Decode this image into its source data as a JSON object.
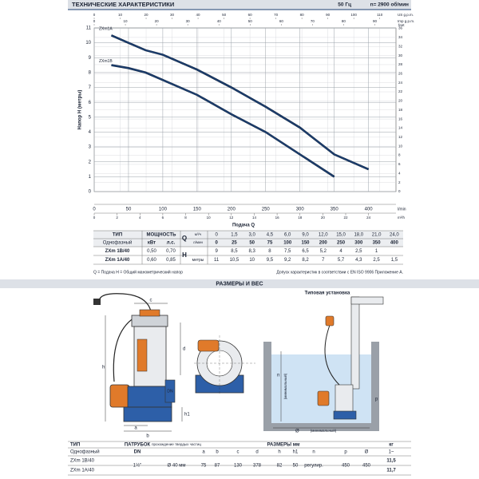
{
  "header": {
    "title": "ТЕХНИЧЕСКИЕ ХАРАКТЕРИСТИКИ",
    "freq": "50 Гц",
    "speed": "n= 2900 об/мин"
  },
  "chart_data": {
    "type": "line",
    "ylabel": "Напор H (метры)",
    "xlabel": "Подача Q",
    "x_unit": "l/min",
    "xlim": [
      0,
      440
    ],
    "xticks": [
      0,
      50,
      100,
      150,
      200,
      250,
      300,
      350,
      400
    ],
    "ylim": [
      0,
      11
    ],
    "yticks": [
      0,
      1,
      2,
      3,
      4,
      5,
      6,
      7,
      8,
      9,
      10,
      11
    ],
    "y2_unit": "feet",
    "y2lim": [
      0,
      36.09
    ],
    "y2ticks": [
      0,
      2,
      4,
      6,
      8,
      10,
      12,
      14,
      16,
      18,
      20,
      22,
      24,
      26,
      28,
      30,
      32,
      34,
      36
    ],
    "x2": {
      "unit": "m³/h",
      "lim": [
        0,
        26.4
      ],
      "ticks": [
        0,
        2,
        4,
        6,
        8,
        10,
        12,
        14,
        16,
        18,
        20,
        22,
        24
      ]
    },
    "x3": {
      "unit": "US g.p.m.",
      "lim": [
        0,
        116.25
      ],
      "ticks": [
        0,
        10,
        20,
        30,
        40,
        50,
        60,
        70,
        80,
        90,
        100,
        110
      ]
    },
    "x4": {
      "unit": "Imp g.p.m.",
      "lim": [
        0,
        96.79
      ],
      "ticks": [
        0,
        10,
        20,
        30,
        40,
        50,
        60,
        70,
        80,
        90
      ]
    },
    "grid": true,
    "x": [
      25,
      50,
      75,
      100,
      150,
      200,
      250,
      300,
      350,
      400
    ],
    "series": [
      {
        "name": "ZXm1A",
        "color": "#1d3f70",
        "values": [
          10.5,
          10,
          9.5,
          9.2,
          8.2,
          7,
          5.7,
          4.3,
          2.5,
          1.5
        ]
      },
      {
        "name": "ZXm1B",
        "color": "#1d3f70",
        "values": [
          8.5,
          8.3,
          8,
          7.5,
          6.5,
          5.2,
          4,
          2.5,
          1,
          null
        ]
      }
    ]
  },
  "performance_table": {
    "type_header": "ТИП",
    "power_header": "МОЩНОСТЬ",
    "q_symbol": "Q",
    "h_symbol": "H",
    "q_units": [
      "м³/ч",
      "л/мин"
    ],
    "h_unit": "метры",
    "phase": "Однофазный",
    "power_units": [
      "кВт",
      "л.с."
    ],
    "flow_m3h": [
      "0",
      "1,5",
      "3,0",
      "4,5",
      "6,0",
      "9,0",
      "12,0",
      "15,0",
      "18,0",
      "21,0",
      "24,0"
    ],
    "flow_lmin": [
      "0",
      "25",
      "50",
      "75",
      "100",
      "150",
      "200",
      "250",
      "300",
      "350",
      "400"
    ],
    "rows": [
      {
        "name": "ZXm 1B/40",
        "kw": "0,50",
        "hp": "0,70",
        "head": [
          "9",
          "8,5",
          "8,3",
          "8",
          "7,5",
          "6,5",
          "5,2",
          "4",
          "2,5",
          "1"
        ]
      },
      {
        "name": "ZXm 1A/40",
        "kw": "0,60",
        "hp": "0,85",
        "head": [
          "11",
          "10,5",
          "10",
          "9,5",
          "9,2",
          "8,2",
          "7",
          "5,7",
          "4,3",
          "2,5",
          "1,5"
        ]
      }
    ]
  },
  "notes": {
    "left": "Q = Подача  H = Общий манометрический напор",
    "right": "Допуск характеристик в соответствии с EN ISO 9906 Приложение A."
  },
  "section": "РАЗМЕРЫ И ВЕС",
  "drawing": {
    "install_title": "Типовая установка",
    "min_note": "(минимальный)"
  },
  "dimensions_table": {
    "type_header": "ТИП",
    "dn_header": "ПАТРУБОК",
    "dn_sub": "DN",
    "solids_header": "прохождение твердых частиц",
    "dims_header": "РАЗМЕРЫ мм",
    "dims": [
      "a",
      "b",
      "c",
      "d",
      "h",
      "h1",
      "n",
      "p",
      "Ø"
    ],
    "kg_header": "кг",
    "kg_sub": "1~",
    "phase": "Однофазный",
    "dn": "1½\"",
    "solids": "Ø 40 мм",
    "values": [
      "75",
      "87",
      "130",
      "378",
      "82",
      "50",
      "регулир.",
      "450",
      "450"
    ],
    "rows": [
      {
        "name": "ZXm 1B/40",
        "kg": "11,5"
      },
      {
        "name": "ZXm 1A/40",
        "kg": "11,7"
      }
    ]
  }
}
